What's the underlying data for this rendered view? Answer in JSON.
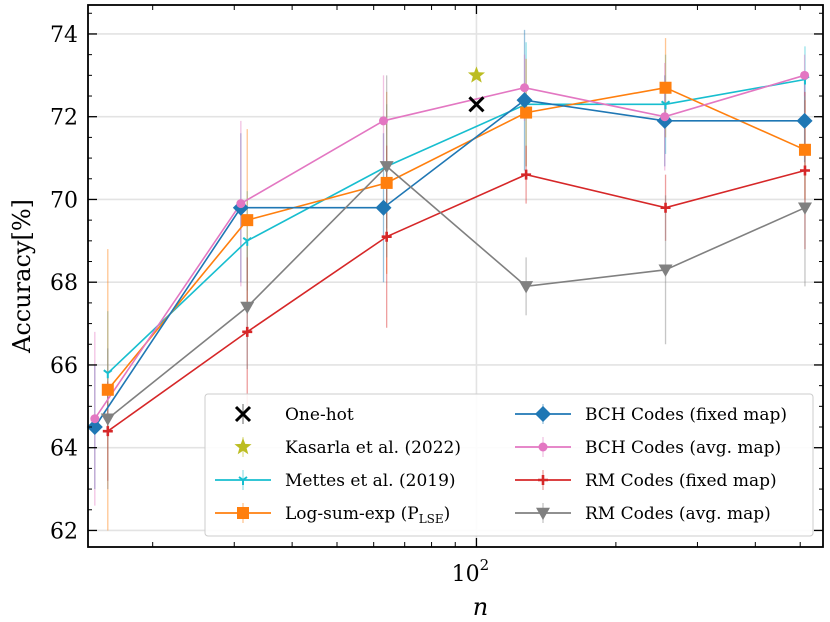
{
  "chart_data": {
    "type": "line",
    "title": "",
    "xlabel": "n",
    "ylabel": "Accuracy[%]",
    "xscale": "log",
    "xlim": [
      14.5,
      560
    ],
    "ylim": [
      61.6,
      74.7
    ],
    "yticks": [
      62,
      64,
      66,
      68,
      70,
      72,
      74
    ],
    "xticks": [
      {
        "value": 100,
        "base": "10",
        "exp": "2"
      }
    ],
    "grid": true,
    "legend_position": "lower-right",
    "legend_columns": 2,
    "series": [
      {
        "name": "One-hot",
        "color": "#000000",
        "marker": "x",
        "x": [
          100
        ],
        "y": [
          72.3
        ],
        "err": [
          0
        ],
        "line": false
      },
      {
        "name": "Kasarla et al. (2022)",
        "color": "#bcbd22",
        "marker": "star",
        "x": [
          100
        ],
        "y": [
          73.0
        ],
        "err": [
          0
        ],
        "line": false
      },
      {
        "name": "Mettes et al. (2019)",
        "color": "#17becf",
        "marker": "tri_down",
        "x": [
          16,
          32,
          64,
          128,
          256,
          512
        ],
        "y": [
          65.8,
          69.0,
          70.8,
          72.3,
          72.3,
          72.9
        ],
        "err": [
          1.5,
          1.2,
          1.5,
          1.5,
          1.2,
          0.8
        ],
        "line": true
      },
      {
        "name": "Log-sum-exp (P_LSE)",
        "label_main": "Log-sum-exp (P",
        "label_sub": "LSE",
        "label_end": ")",
        "color": "#ff7f0e",
        "marker": "square",
        "x": [
          16,
          32,
          64,
          128,
          256,
          512
        ],
        "y": [
          65.4,
          69.5,
          70.4,
          72.1,
          72.7,
          71.2
        ],
        "err": [
          3.4,
          2.2,
          2.2,
          1.3,
          1.2,
          1.2
        ],
        "line": true
      },
      {
        "name": "BCH Codes (fixed map)",
        "color": "#1f77b4",
        "marker": "diamond",
        "x": [
          15,
          31,
          63,
          127,
          255,
          511
        ],
        "y": [
          64.5,
          69.8,
          69.8,
          72.4,
          71.9,
          71.9
        ],
        "err": [
          1.5,
          1.8,
          1.8,
          1.7,
          1.1,
          1.0
        ],
        "line": true
      },
      {
        "name": "BCH Codes (avg. map)",
        "color": "#e377c2",
        "marker": "circle",
        "x": [
          15,
          31,
          63,
          127,
          255,
          511
        ],
        "y": [
          64.7,
          69.9,
          71.9,
          72.7,
          72.0,
          73.0
        ],
        "err": [
          2.1,
          2.0,
          1.1,
          0.8,
          1.3,
          0.5
        ],
        "line": true
      },
      {
        "name": "RM Codes (fixed map)",
        "color": "#d62728",
        "marker": "plus",
        "x": [
          16,
          32,
          64,
          128,
          256,
          512
        ],
        "y": [
          64.4,
          66.8,
          69.1,
          70.6,
          69.8,
          70.7
        ],
        "err": [
          1.2,
          1.8,
          2.2,
          0.7,
          0.8,
          1.9
        ],
        "line": true
      },
      {
        "name": "RM Codes (avg. map)",
        "color": "#808080",
        "marker": "tri_down",
        "x": [
          16,
          32,
          64,
          128,
          256,
          512
        ],
        "y": [
          64.7,
          67.4,
          70.8,
          67.9,
          68.3,
          69.8
        ],
        "err": [
          1.7,
          1.5,
          2.2,
          0.7,
          1.8,
          1.9
        ],
        "line": true
      }
    ]
  }
}
